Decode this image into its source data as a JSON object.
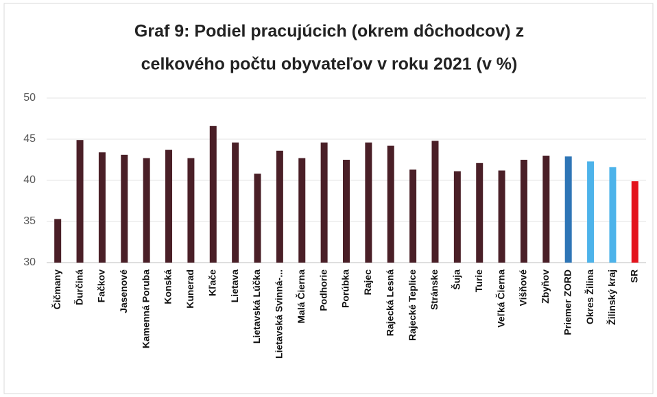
{
  "chart_data": {
    "type": "bar",
    "title": [
      "Graf 9: Podiel pracujúcich (okrem dôchodcov) z",
      "celkového počtu obyvateľov v roku 2021 (v %)"
    ],
    "categories": [
      "Čičmany",
      "Ďurčiná",
      "Fačkov",
      "Jasenové",
      "Kamenná Poruba",
      "Konská",
      "Kunerad",
      "Kľače",
      "Lietava",
      "Lietavská Lúčka",
      "Lietavská Svinná-...",
      "Malá Čierna",
      "Podhorie",
      "Porúbka",
      "Rajec",
      "Rajecká Lesná",
      "Rajecké Teplice",
      "Stránske",
      "Šuja",
      "Turie",
      "Veľká Čierna",
      "Višňové",
      "Zbyňov",
      "Priemer ZORD",
      "Okres Žilina",
      "Žilinský kraj",
      "SR"
    ],
    "values": [
      35.3,
      44.9,
      43.4,
      43.1,
      42.7,
      43.7,
      42.7,
      46.6,
      44.6,
      40.8,
      43.6,
      42.7,
      44.6,
      42.5,
      44.6,
      44.2,
      41.3,
      44.8,
      41.1,
      42.1,
      41.2,
      42.5,
      43.0,
      42.9,
      42.3,
      41.6,
      39.9
    ],
    "colors": [
      "#4a1f27",
      "#4a1f27",
      "#4a1f27",
      "#4a1f27",
      "#4a1f27",
      "#4a1f27",
      "#4a1f27",
      "#4a1f27",
      "#4a1f27",
      "#4a1f27",
      "#4a1f27",
      "#4a1f27",
      "#4a1f27",
      "#4a1f27",
      "#4a1f27",
      "#4a1f27",
      "#4a1f27",
      "#4a1f27",
      "#4a1f27",
      "#4a1f27",
      "#4a1f27",
      "#4a1f27",
      "#4a1f27",
      "#2e75b6",
      "#4db3ea",
      "#4db3ea",
      "#e3131c"
    ],
    "ylim": [
      30,
      50
    ],
    "yticks": [
      30,
      35,
      40,
      45,
      50
    ],
    "grid": true
  }
}
